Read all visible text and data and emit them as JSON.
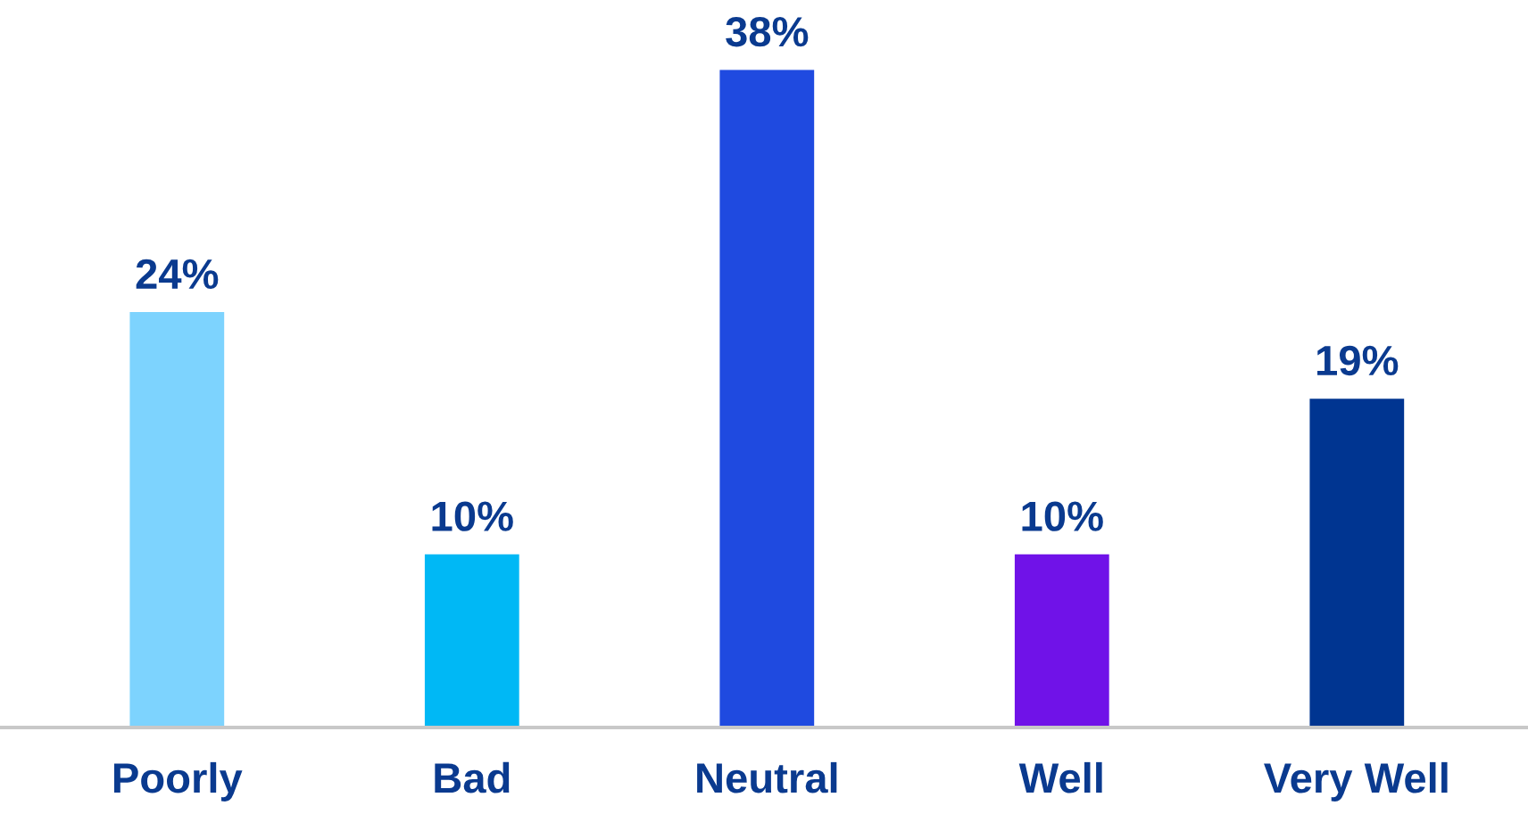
{
  "chart_data": {
    "type": "bar",
    "categories": [
      "Poorly",
      "Bad",
      "Neutral",
      "Well",
      "Very Well"
    ],
    "values": [
      24,
      10,
      38,
      10,
      19
    ],
    "value_labels": [
      "24%",
      "10%",
      "38%",
      "10%",
      "19%"
    ],
    "colors": [
      "#7dd3fe",
      "#00b8f5",
      "#1f4ae0",
      "#7012e8",
      "#003591"
    ],
    "grid": false,
    "legend": false
  }
}
